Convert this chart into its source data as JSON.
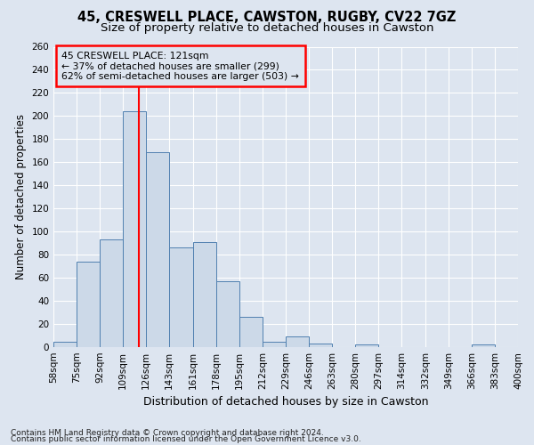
{
  "title1": "45, CRESWELL PLACE, CAWSTON, RUGBY, CV22 7GZ",
  "title2": "Size of property relative to detached houses in Cawston",
  "xlabel": "Distribution of detached houses by size in Cawston",
  "ylabel": "Number of detached properties",
  "footnote1": "Contains HM Land Registry data © Crown copyright and database right 2024.",
  "footnote2": "Contains public sector information licensed under the Open Government Licence v3.0.",
  "annotation_line1": "45 CRESWELL PLACE: 121sqm",
  "annotation_line2": "← 37% of detached houses are smaller (299)",
  "annotation_line3": "62% of semi-detached houses are larger (503) →",
  "bar_edges": [
    58,
    75,
    92,
    109,
    126,
    143,
    161,
    178,
    195,
    212,
    229,
    246,
    263,
    280,
    297,
    314,
    332,
    349,
    366,
    383,
    400
  ],
  "bar_heights": [
    5,
    74,
    93,
    204,
    169,
    86,
    91,
    57,
    26,
    5,
    9,
    3,
    0,
    2,
    0,
    0,
    0,
    0,
    2,
    0
  ],
  "bar_color": "#ccd9e8",
  "bar_edge_color": "#5080b0",
  "red_line_x": 121,
  "ylim_max": 260,
  "yticks": [
    0,
    20,
    40,
    60,
    80,
    100,
    120,
    140,
    160,
    180,
    200,
    220,
    240,
    260
  ],
  "bg_color": "#dde5f0",
  "grid_color": "#ffffff",
  "title1_fontsize": 10.5,
  "title2_fontsize": 9.5,
  "xlabel_fontsize": 9,
  "ylabel_fontsize": 8.5,
  "tick_fontsize": 7.5,
  "footnote_fontsize": 6.5
}
